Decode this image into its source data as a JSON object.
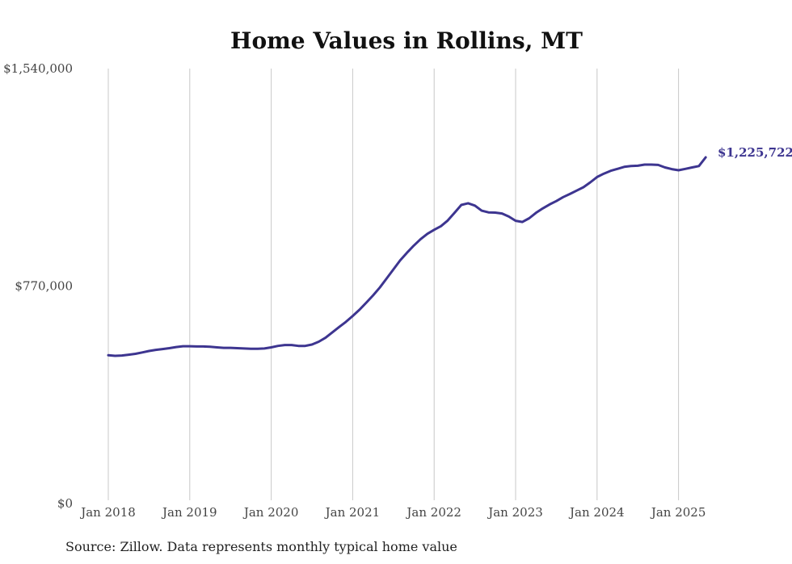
{
  "chart_data": {
    "type": "line",
    "title": "Home Values in Rollins, MT",
    "source": "Source: Zillow. Data represents monthly typical home value",
    "xlabel": "",
    "ylabel": "",
    "x_tick_labels": [
      "Jan 2018",
      "Jan 2019",
      "Jan 2020",
      "Jan 2021",
      "Jan 2022",
      "Jan 2023",
      "Jan 2024",
      "Jan 2025"
    ],
    "y_tick_labels": [
      "$0",
      "$770,000",
      "$1,540,000"
    ],
    "y_tick_values": [
      0,
      770000,
      1540000
    ],
    "ylim": [
      0,
      1540000
    ],
    "grid": "vertical",
    "line_color": "#3d3590",
    "end_label": "$1,225,722",
    "series": [
      {
        "x": [
          "2018-01",
          "2018-02",
          "2018-03",
          "2018-04",
          "2018-05",
          "2018-06",
          "2018-07",
          "2018-08",
          "2018-09",
          "2018-10",
          "2018-11",
          "2018-12",
          "2019-01",
          "2019-02",
          "2019-03",
          "2019-04",
          "2019-05",
          "2019-06",
          "2019-07",
          "2019-08",
          "2019-09",
          "2019-10",
          "2019-11",
          "2019-12",
          "2020-01",
          "2020-02",
          "2020-03",
          "2020-04",
          "2020-05",
          "2020-06",
          "2020-07",
          "2020-08",
          "2020-09",
          "2020-10",
          "2020-11",
          "2020-12",
          "2021-01",
          "2021-02",
          "2021-03",
          "2021-04",
          "2021-05",
          "2021-06",
          "2021-07",
          "2021-08",
          "2021-09",
          "2021-10",
          "2021-11",
          "2021-12",
          "2022-01",
          "2022-02",
          "2022-03",
          "2022-04",
          "2022-05",
          "2022-06",
          "2022-07",
          "2022-08",
          "2022-09",
          "2022-10",
          "2022-11",
          "2022-12",
          "2023-01",
          "2023-02",
          "2023-03",
          "2023-04",
          "2023-05",
          "2023-06",
          "2023-07",
          "2023-08",
          "2023-09",
          "2023-10",
          "2023-11",
          "2023-12",
          "2024-01",
          "2024-02",
          "2024-03",
          "2024-04",
          "2024-05",
          "2024-06",
          "2024-07",
          "2024-08",
          "2024-09",
          "2024-10",
          "2024-11",
          "2024-12",
          "2025-01",
          "2025-02",
          "2025-03",
          "2025-04",
          "2025-05"
        ],
        "y": [
          525000,
          523000,
          524000,
          527000,
          530000,
          535000,
          540000,
          544000,
          547000,
          550000,
          554000,
          557000,
          557000,
          556000,
          556000,
          555000,
          553000,
          551000,
          551000,
          550000,
          549000,
          548000,
          548000,
          549000,
          553000,
          558000,
          561000,
          561000,
          558000,
          558000,
          563000,
          573000,
          587000,
          606000,
          625000,
          643000,
          664000,
          686000,
          711000,
          737000,
          765000,
          797000,
          829000,
          861000,
          888000,
          913000,
          936000,
          955000,
          969000,
          982000,
          1002000,
          1029000,
          1057000,
          1063000,
          1055000,
          1037000,
          1031000,
          1030000,
          1027000,
          1016000,
          1001000,
          997000,
          1010000,
          1029000,
          1045000,
          1059000,
          1071000,
          1085000,
          1096000,
          1108000,
          1120000,
          1137000,
          1156000,
          1168000,
          1178000,
          1185000,
          1192000,
          1195000,
          1196000,
          1200000,
          1200000,
          1199000,
          1190000,
          1184000,
          1180000,
          1185000,
          1190000,
          1195000,
          1225722
        ]
      }
    ]
  }
}
